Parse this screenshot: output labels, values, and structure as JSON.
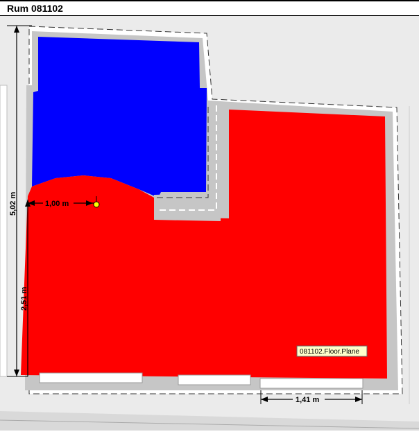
{
  "window": {
    "title": "Rum 081102"
  },
  "dimensions": {
    "total_height": "5,02 m",
    "lower_height": "2,51 m",
    "offset": "1,00 m",
    "opening_width": "1,41 m"
  },
  "floor_plane_label": "081102.Floor.Plane",
  "colors": {
    "background": "#ebebeb",
    "wall": "#c6c6c6",
    "blue_zone": "#0000ff",
    "red_zone": "#ff0000",
    "marker": "#ffff00"
  }
}
